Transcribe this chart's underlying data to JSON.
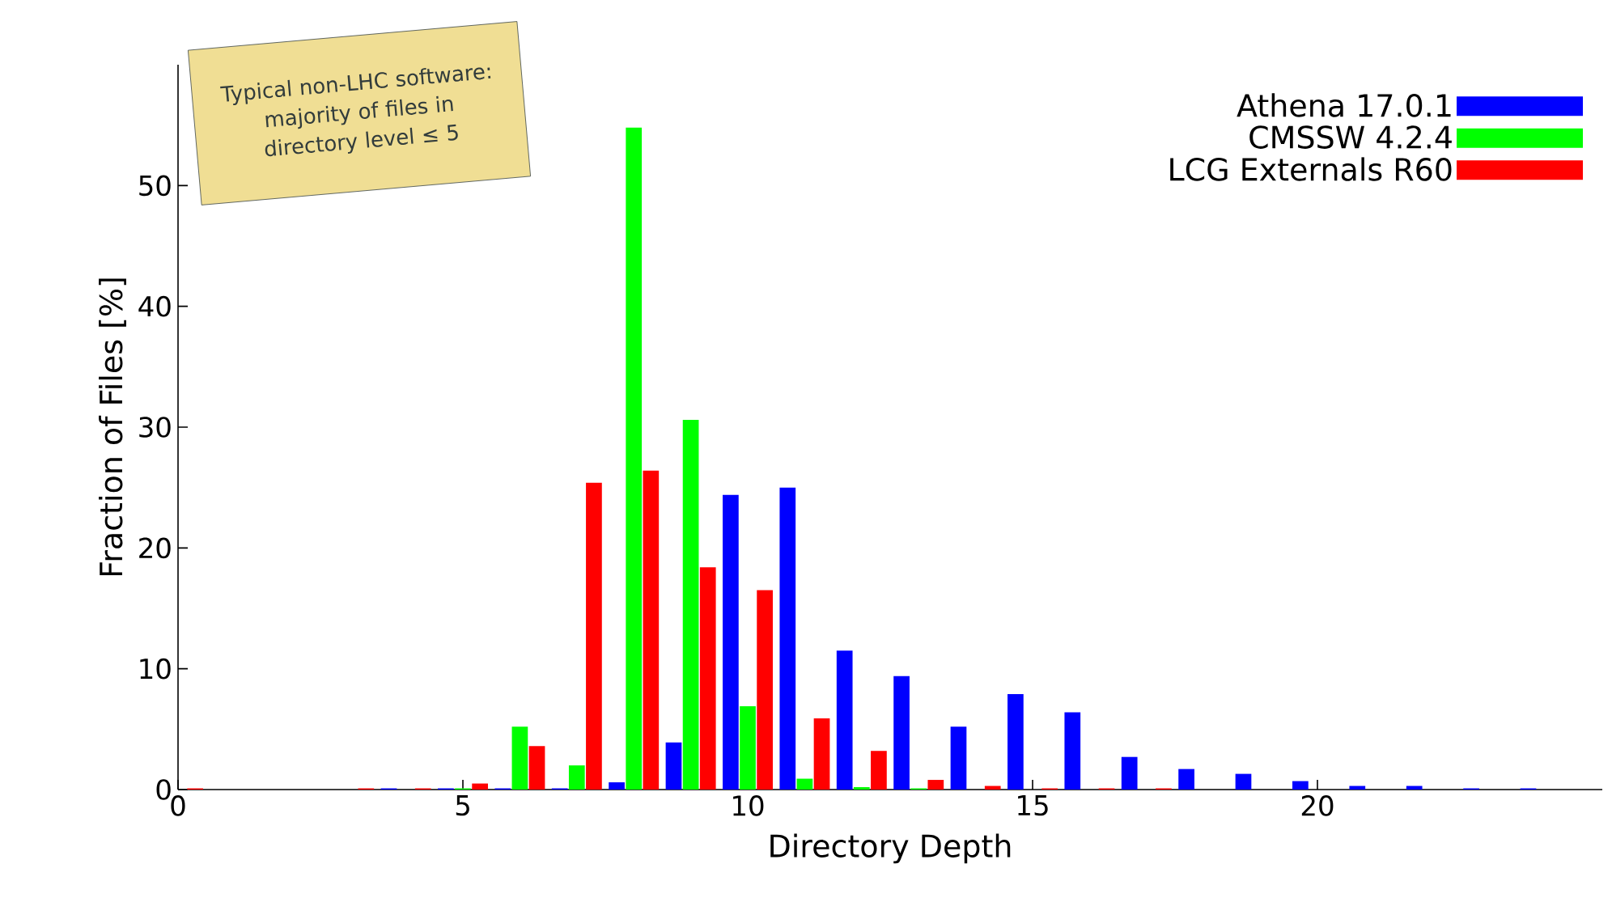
{
  "chart_data": {
    "type": "bar",
    "xlabel": "Directory Depth",
    "ylabel": "Fraction of Files [%]",
    "x": [
      0,
      1,
      2,
      3,
      4,
      5,
      6,
      7,
      8,
      9,
      10,
      11,
      12,
      13,
      14,
      15,
      16,
      17,
      18,
      19,
      20,
      21,
      22,
      23,
      24
    ],
    "series": [
      {
        "name": "Athena 17.0.1",
        "color": "#0000ff",
        "values": [
          null,
          null,
          null,
          null,
          0.1,
          0.1,
          0.1,
          0.1,
          0.6,
          3.9,
          24.4,
          25.0,
          11.5,
          9.4,
          5.2,
          7.9,
          6.4,
          2.7,
          1.7,
          1.3,
          0.7,
          0.3,
          0.3,
          0.1,
          0.1
        ]
      },
      {
        "name": "CMSSW 4.2.4",
        "color": "#00ff00",
        "values": [
          null,
          null,
          null,
          null,
          null,
          0.1,
          5.2,
          2.0,
          54.8,
          30.6,
          6.9,
          0.9,
          0.2,
          0.1,
          null,
          null,
          null,
          null,
          null,
          null,
          null,
          null,
          null,
          null,
          null
        ]
      },
      {
        "name": "LCG Externals R60",
        "color": "#ff0000",
        "values": [
          0.1,
          null,
          null,
          0.1,
          0.1,
          0.5,
          3.6,
          25.4,
          26.4,
          18.4,
          16.5,
          5.9,
          3.2,
          0.8,
          0.3,
          0.1,
          0.1,
          0.1,
          null,
          null,
          null,
          null,
          null,
          null,
          null
        ]
      }
    ],
    "xlim": [
      0,
      25
    ],
    "ylim": [
      0,
      60
    ],
    "xticks": [
      0,
      5,
      10,
      15,
      20
    ],
    "yticks": [
      0,
      10,
      20,
      30,
      40,
      50
    ],
    "legend": "top right",
    "annotations": [
      "Typical non-LHC software: majority of files in directory level ≤ 5"
    ]
  }
}
